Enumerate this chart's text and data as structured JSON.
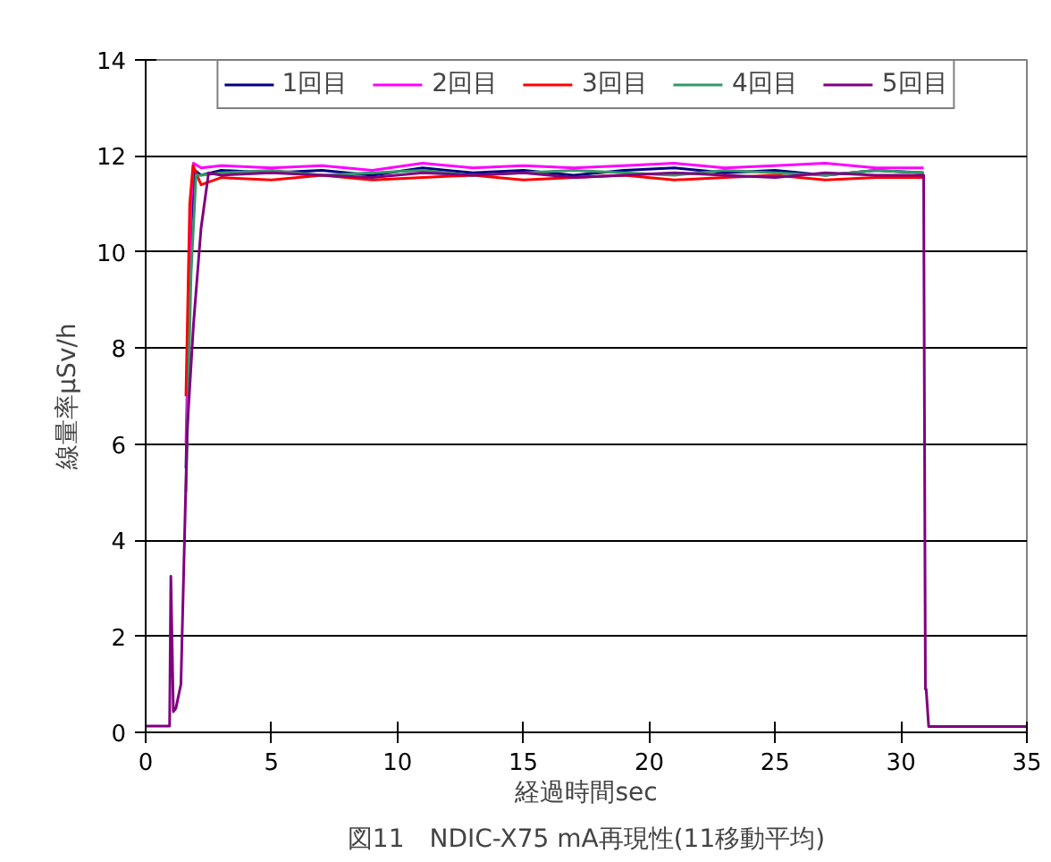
{
  "chart_data": {
    "type": "line",
    "title": "図11　NDIC-X75 mA再現性(11移動平均)",
    "xlabel": "経過時間sec",
    "ylabel": "線量率μSv/h",
    "xlim": [
      0,
      35
    ],
    "xticks": [
      0,
      5,
      10,
      15,
      20,
      25,
      30,
      35
    ],
    "ylim": [
      0,
      14
    ],
    "yticks": [
      0,
      2,
      4,
      6,
      8,
      10,
      12,
      14
    ],
    "grid": "y",
    "legend": "top",
    "marker": "none",
    "line_style": "solid",
    "series": [
      {
        "name": "1回目",
        "color": "#000080",
        "x": [
          1.6,
          1.8,
          1.95,
          2.2,
          3,
          5,
          7,
          9,
          11,
          13,
          15,
          17,
          19,
          21,
          23,
          25,
          27,
          29,
          30.9
        ],
        "values": [
          5.5,
          10.5,
          11.7,
          11.6,
          11.7,
          11.65,
          11.7,
          11.6,
          11.75,
          11.65,
          11.7,
          11.6,
          11.7,
          11.75,
          11.65,
          11.7,
          11.6,
          11.7,
          11.65
        ]
      },
      {
        "name": "2回目",
        "color": "#ff00ff",
        "x": [
          1.6,
          1.8,
          1.9,
          2.2,
          3,
          5,
          7,
          9,
          11,
          13,
          15,
          17,
          19,
          21,
          23,
          25,
          27,
          29,
          30.9
        ],
        "values": [
          6.0,
          11.0,
          11.85,
          11.75,
          11.8,
          11.75,
          11.8,
          11.7,
          11.85,
          11.75,
          11.8,
          11.75,
          11.8,
          11.85,
          11.75,
          11.8,
          11.85,
          11.75,
          11.75
        ]
      },
      {
        "name": "3回目",
        "color": "#ff0000",
        "x": [
          1.6,
          1.75,
          1.88,
          2.2,
          3,
          5,
          7,
          9,
          11,
          13,
          15,
          17,
          19,
          21,
          23,
          25,
          27,
          29,
          30.9
        ],
        "values": [
          7.0,
          11.0,
          11.8,
          11.4,
          11.55,
          11.5,
          11.6,
          11.5,
          11.55,
          11.6,
          11.5,
          11.55,
          11.6,
          11.5,
          11.55,
          11.6,
          11.5,
          11.55,
          11.55
        ]
      },
      {
        "name": "4回目",
        "color": "#339966",
        "x": [
          1.6,
          1.8,
          2.0,
          2.2,
          3,
          5,
          7,
          9,
          11,
          13,
          15,
          17,
          19,
          21,
          23,
          25,
          27,
          29,
          30.9
        ],
        "values": [
          5.0,
          9.5,
          11.6,
          11.6,
          11.65,
          11.7,
          11.6,
          11.65,
          11.7,
          11.6,
          11.65,
          11.7,
          11.65,
          11.6,
          11.7,
          11.65,
          11.6,
          11.7,
          11.65
        ]
      },
      {
        "name": "5回目",
        "color": "#800080",
        "x": [
          0,
          0.95,
          1.0,
          1.1,
          1.2,
          1.4,
          1.65,
          1.9,
          2.2,
          2.5,
          3,
          5,
          7,
          9,
          11,
          13,
          15,
          17,
          19,
          21,
          23,
          25,
          27,
          29,
          30.9,
          30.97,
          31.0,
          31.1,
          35
        ],
        "values": [
          0.13,
          0.13,
          3.25,
          0.43,
          0.5,
          1.0,
          6.3,
          8.5,
          10.5,
          11.65,
          11.6,
          11.65,
          11.6,
          11.55,
          11.65,
          11.6,
          11.65,
          11.55,
          11.6,
          11.65,
          11.6,
          11.55,
          11.65,
          11.6,
          11.6,
          0.9,
          0.9,
          0.12,
          0.12
        ]
      }
    ]
  }
}
